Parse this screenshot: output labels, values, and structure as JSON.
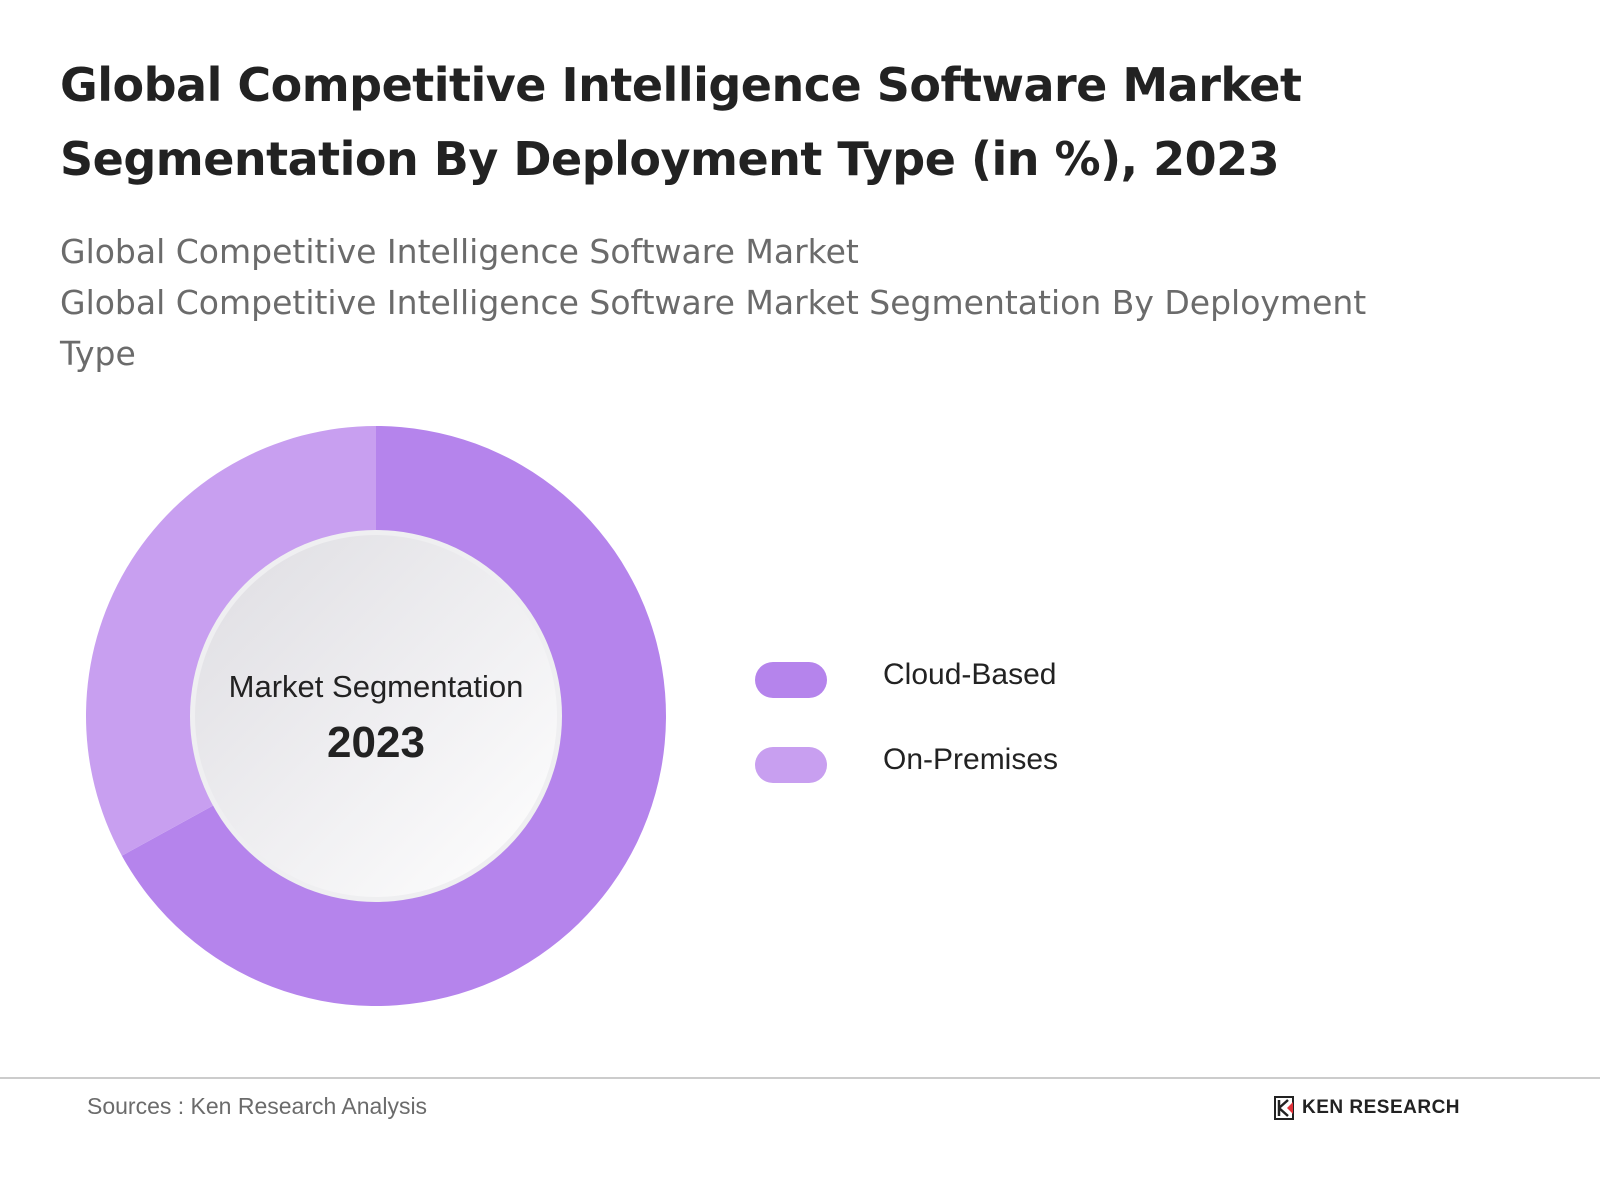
{
  "title": "Global Competitive Intelligence Software Market Segmentation By Deployment Type (in %), 2023",
  "subtitle_line1": "Global Competitive Intelligence Software Market",
  "subtitle_line2": "Global Competitive Intelligence Software Market Segmentation By Deployment Type",
  "chart_data": {
    "type": "pie",
    "variant": "donut",
    "center_label": "Market Segmentation",
    "center_value": "2023",
    "categories": [
      "Cloud-Based",
      "On-Premises"
    ],
    "values": [
      67,
      33
    ],
    "colors": [
      "#b584ec",
      "#c89ff0"
    ],
    "legend_position": "right"
  },
  "footer": {
    "source": "Sources : Ken Research Analysis",
    "logo_text": "KEN RESEARCH"
  }
}
